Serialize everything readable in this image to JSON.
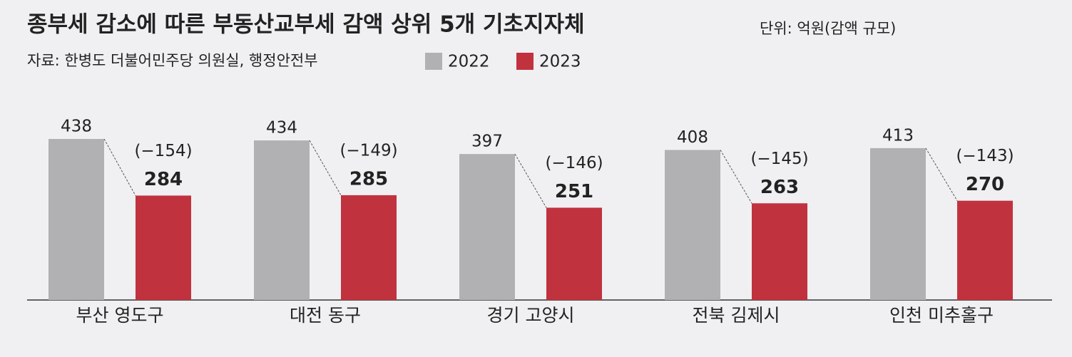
{
  "chart_data": {
    "type": "bar",
    "title": "종부세 감소에 따른 부동산교부세 감액 상위 5개 기초지자체",
    "unit_note": "단위: 억원(감액 규모)",
    "source": "자료: 한병도 더불어민주당 의원실, 행정안전부",
    "categories": [
      "부산 영도구",
      "대전 동구",
      "경기 고양시",
      "전북 김제시",
      "인천 미추홀구"
    ],
    "series": [
      {
        "name": "2022",
        "color": "#b1b1b3",
        "values": [
          438,
          434,
          397,
          408,
          413
        ]
      },
      {
        "name": "2023",
        "color": "#c0333e",
        "values": [
          284,
          285,
          251,
          263,
          270
        ]
      }
    ],
    "changes": [
      {
        "value": -154,
        "label": "(−154)"
      },
      {
        "value": -149,
        "label": "(−149)"
      },
      {
        "value": -146,
        "label": "(−146)"
      },
      {
        "value": -145,
        "label": "(−145)"
      },
      {
        "value": -143,
        "label": "(−143)"
      }
    ],
    "ylim": [
      0,
      500
    ]
  }
}
